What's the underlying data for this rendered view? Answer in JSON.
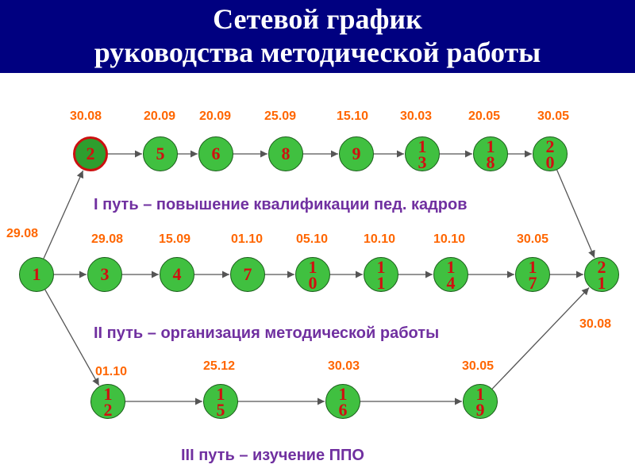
{
  "header": {
    "title_line1": "Сетевой график",
    "title_line2": "руководства методической работы",
    "background": "#000080"
  },
  "colors": {
    "node_fill": "#40c040",
    "node_text": "#d01010",
    "date_text": "#ff6600",
    "path_label": "#7030a0",
    "arrow": "#555555"
  },
  "paths": {
    "path1": "I путь – повышение квалификации пед. кадров",
    "path2": "II путь – организация методической работы",
    "path3": "III путь – изучение ППО"
  },
  "nodes": [
    {
      "id": "n1",
      "label": "1",
      "date": "29.08"
    },
    {
      "id": "n2",
      "label": "2",
      "date": "30.08"
    },
    {
      "id": "n5",
      "label": "5",
      "date": "20.09"
    },
    {
      "id": "n6",
      "label": "6",
      "date": "20.09"
    },
    {
      "id": "n8",
      "label": "8",
      "date": "25.09"
    },
    {
      "id": "n9",
      "label": "9",
      "date": "15.10"
    },
    {
      "id": "n13",
      "label": "13",
      "date": "30.03"
    },
    {
      "id": "n18",
      "label": "18",
      "date": "20.05"
    },
    {
      "id": "n20",
      "label": "20",
      "date": "30.05"
    },
    {
      "id": "n3",
      "label": "3",
      "date": "29.08"
    },
    {
      "id": "n4",
      "label": "4",
      "date": "15.09"
    },
    {
      "id": "n7",
      "label": "7",
      "date": "01.10"
    },
    {
      "id": "n10",
      "label": "10",
      "date": "05.10"
    },
    {
      "id": "n11",
      "label": "11",
      "date": "10.10"
    },
    {
      "id": "n14",
      "label": "14",
      "date": "10.10"
    },
    {
      "id": "n17",
      "label": "17",
      "date": "30.05"
    },
    {
      "id": "n21",
      "label": "21",
      "date": "30.08"
    },
    {
      "id": "n12",
      "label": "12",
      "date": "01.10"
    },
    {
      "id": "n15",
      "label": "15",
      "date": "25.12"
    },
    {
      "id": "n16",
      "label": "16",
      "date": "30.03"
    },
    {
      "id": "n19",
      "label": "19",
      "date": "30.05"
    }
  ],
  "edges": [
    [
      "n1",
      "n2"
    ],
    [
      "n2",
      "n5"
    ],
    [
      "n5",
      "n6"
    ],
    [
      "n6",
      "n8"
    ],
    [
      "n8",
      "n9"
    ],
    [
      "n9",
      "n13"
    ],
    [
      "n13",
      "n18"
    ],
    [
      "n18",
      "n20"
    ],
    [
      "n20",
      "n21"
    ],
    [
      "n1",
      "n3"
    ],
    [
      "n3",
      "n4"
    ],
    [
      "n4",
      "n7"
    ],
    [
      "n7",
      "n10"
    ],
    [
      "n10",
      "n11"
    ],
    [
      "n11",
      "n14"
    ],
    [
      "n14",
      "n17"
    ],
    [
      "n17",
      "n21"
    ],
    [
      "n1",
      "n12"
    ],
    [
      "n12",
      "n15"
    ],
    [
      "n15",
      "n16"
    ],
    [
      "n16",
      "n19"
    ],
    [
      "n19",
      "n21"
    ]
  ]
}
